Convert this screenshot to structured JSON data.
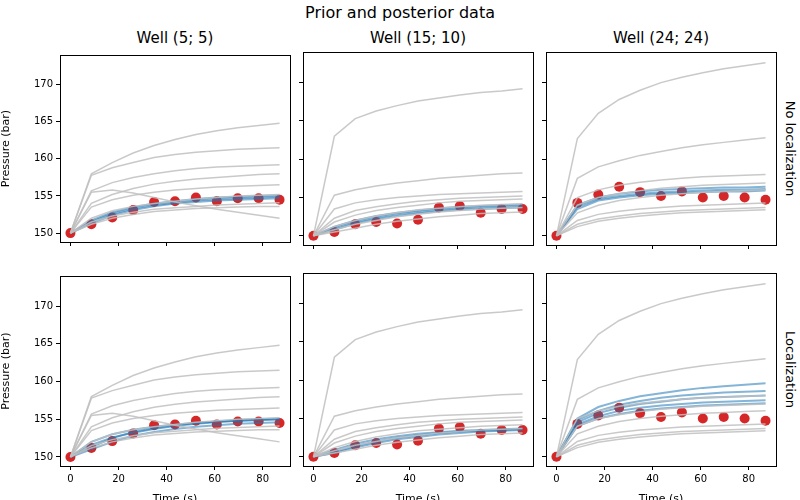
{
  "chart_data": {
    "type": "line",
    "title": "Prior and posterior data",
    "x_label": "Time (s)",
    "y_label": "Pressure (bar)",
    "x": [
      0,
      8.7,
      17.4,
      26.1,
      34.8,
      43.5,
      52.2,
      60.9,
      69.6,
      78.3,
      87
    ],
    "xlim": [
      -4.35,
      91.35
    ],
    "xticks": [
      0,
      20,
      40,
      60,
      80
    ],
    "ylim": [
      148.8,
      174
    ],
    "yticks": [
      150,
      155,
      160,
      165,
      170
    ],
    "grid": false,
    "legend": false,
    "wells": [
      {
        "title": "Well (5; 5)",
        "observed": {
          "color": "#d62728",
          "marker": "circle",
          "line_style": "none",
          "values": [
            150,
            151.2,
            152.1,
            153.1,
            154.2,
            154.3,
            154.8,
            154.3,
            154.7,
            154.7,
            154.5
          ]
        },
        "prior": {
          "color": "#bfbfbf",
          "line_style": "solid",
          "values": [
            [
              150,
              158,
              159.5,
              160.8,
              161.8,
              162.6,
              163.3,
              163.8,
              164.2,
              164.5,
              164.8
            ],
            [
              150,
              157.8,
              158.8,
              159.5,
              160.2,
              160.6,
              160.9,
              161.1,
              161.3,
              161.4,
              161.5
            ],
            [
              150,
              155.7,
              156.8,
              157.5,
              158.0,
              158.4,
              158.7,
              158.9,
              159.0,
              159.1,
              159.2
            ],
            [
              150,
              155.5,
              155.8,
              155.4,
              154.8,
              154.2,
              153.7,
              153.2,
              152.8,
              152.4,
              152.0
            ],
            [
              150,
              154.0,
              155.2,
              156.0,
              156.6,
              157.0,
              157.3,
              157.5,
              157.7,
              157.9,
              158.0
            ],
            [
              150,
              153.5,
              154.5,
              155.1,
              155.5,
              155.8,
              156.0,
              156.2,
              156.3,
              156.4,
              156.5
            ],
            [
              150,
              152.0,
              153.0,
              153.6,
              154.0,
              154.3,
              154.6,
              154.8,
              155.0,
              155.1,
              155.2
            ],
            [
              150,
              151.5,
              152.3,
              152.8,
              153.2,
              153.4,
              153.6,
              153.8,
              153.9,
              154.0,
              154.1
            ],
            [
              150,
              151.2,
              152.0,
              152.5,
              152.9,
              153.1,
              153.3,
              153.4,
              153.5,
              153.6,
              153.6
            ]
          ]
        }
      },
      {
        "title": "Well (15; 10)",
        "observed": {
          "color": "#d62728",
          "marker": "circle",
          "line_style": "none",
          "values": [
            150,
            150.5,
            151.5,
            151.8,
            151.6,
            152.1,
            153.7,
            153.9,
            153.0,
            153.5,
            153.5
          ]
        },
        "prior": {
          "color": "#bfbfbf",
          "line_style": "solid",
          "values": [
            [
              150,
              163,
              165.3,
              166.3,
              167.0,
              167.6,
              168.0,
              168.4,
              168.7,
              168.9,
              169.2
            ],
            [
              150,
              155.3,
              156.0,
              156.5,
              156.9,
              157.2,
              157.5,
              157.7,
              157.9,
              158.1,
              158.2
            ],
            [
              150,
              153.5,
              154.3,
              154.7,
              155.0,
              155.2,
              155.4,
              155.5,
              155.6,
              155.7,
              155.8
            ],
            [
              150,
              152.3,
              153.3,
              153.8,
              154.2,
              154.5,
              154.7,
              154.9,
              155.0,
              155.1,
              155.2
            ],
            [
              150,
              151.8,
              152.7,
              153.3,
              153.7,
              154.0,
              154.3,
              154.5,
              154.6,
              154.7,
              154.8
            ],
            [
              150,
              151.2,
              152.0,
              152.6,
              153.0,
              153.4,
              153.6,
              153.8,
              154.0,
              154.1,
              154.2
            ],
            [
              150,
              150.8,
              151.5,
              152.0,
              152.5,
              152.8,
              153.1,
              153.3,
              153.5,
              153.6,
              153.7
            ],
            [
              150,
              150.5,
              151.0,
              151.5,
              151.9,
              152.2,
              152.5,
              152.7,
              152.9,
              153.0,
              153.1
            ]
          ]
        }
      },
      {
        "title": "Well (24; 24)",
        "observed": {
          "color": "#d62728",
          "marker": "circle",
          "line_style": "none",
          "values": [
            150,
            154.3,
            155.4,
            156.4,
            155.7,
            155.2,
            155.8,
            155.0,
            155.2,
            155.0,
            154.7
          ]
        },
        "prior": {
          "color": "#bfbfbf",
          "line_style": "solid",
          "values": [
            [
              150,
              162.7,
              166.0,
              167.8,
              169.0,
              170.0,
              170.7,
              171.3,
              171.8,
              172.2,
              172.6
            ],
            [
              150,
              157.5,
              159.0,
              159.8,
              160.5,
              161.0,
              161.5,
              161.9,
              162.2,
              162.5,
              162.8
            ],
            [
              150,
              155.0,
              156.0,
              156.6,
              157.0,
              157.3,
              157.5,
              157.7,
              157.8,
              157.9,
              158.0
            ],
            [
              150,
              154.0,
              155.0,
              155.5,
              155.9,
              156.2,
              156.4,
              156.6,
              156.7,
              156.8,
              156.9
            ],
            [
              150,
              153.0,
              154.0,
              154.6,
              155.0,
              155.3,
              155.5,
              155.7,
              155.8,
              155.9,
              156.0
            ],
            [
              150,
              152.0,
              152.8,
              153.2,
              153.5,
              153.7,
              153.9,
              154.0,
              154.1,
              154.2,
              154.3
            ],
            [
              150,
              151.5,
              152.2,
              152.6,
              152.9,
              153.1,
              153.3,
              153.4,
              153.5,
              153.6,
              153.7
            ],
            [
              150,
              151.2,
              151.9,
              152.3,
              152.6,
              152.8,
              153.0,
              153.1,
              153.2,
              153.3,
              153.4
            ]
          ]
        }
      }
    ],
    "rows": [
      {
        "label": "No localization",
        "posterior": {
          "color": "#1f77b4",
          "line_style": "solid",
          "values": [
            [
              [
                150,
                151.5,
                152.6,
                153.3,
                153.8,
                154.1,
                154.4,
                154.6,
                154.7,
                154.8,
                154.9
              ],
              [
                150,
                151.3,
                152.4,
                153.1,
                153.6,
                154.0,
                154.2,
                154.4,
                154.5,
                154.6,
                154.7
              ],
              [
                150,
                151.7,
                152.8,
                153.5,
                154.0,
                154.3,
                154.6,
                154.8,
                154.9,
                155.0,
                155.1
              ]
            ],
            [
              [
                150,
                151.0,
                151.8,
                152.4,
                152.8,
                153.1,
                153.4,
                153.6,
                153.7,
                153.8,
                153.9
              ],
              [
                150,
                150.8,
                151.6,
                152.2,
                152.6,
                152.9,
                153.2,
                153.4,
                153.5,
                153.6,
                153.7
              ],
              [
                150,
                151.2,
                152.0,
                152.6,
                153.0,
                153.3,
                153.6,
                153.8,
                153.9,
                154.0,
                154.1
              ]
            ],
            [
              [
                150,
                153.8,
                154.8,
                155.2,
                155.5,
                155.7,
                155.8,
                155.9,
                156.0,
                156.0,
                156.1
              ],
              [
                150,
                153.5,
                154.6,
                155.0,
                155.3,
                155.5,
                155.6,
                155.7,
                155.8,
                155.8,
                155.9
              ],
              [
                150,
                154.0,
                155.0,
                155.5,
                155.8,
                156.0,
                156.1,
                156.2,
                156.3,
                156.3,
                156.4
              ]
            ]
          ]
        }
      },
      {
        "label": "Localization",
        "posterior": {
          "color": "#1f77b4",
          "line_style": "solid",
          "values": [
            [
              [
                150,
                151.3,
                152.5,
                153.3,
                153.8,
                154.2,
                154.5,
                154.7,
                154.9,
                155.0,
                155.1
              ],
              [
                150,
                152.0,
                153.0,
                153.6,
                154.0,
                154.3,
                154.5,
                154.7,
                154.8,
                154.9,
                155.0
              ],
              [
                150,
                151.0,
                152.0,
                152.8,
                153.3,
                153.7,
                154.0,
                154.2,
                154.4,
                154.5,
                154.6
              ],
              [
                150,
                151.6,
                152.6,
                153.2,
                153.7,
                154.1,
                154.4,
                154.6,
                154.8,
                154.9,
                155.0
              ]
            ],
            [
              [
                150,
                150.6,
                151.4,
                152.0,
                152.5,
                152.8,
                153.1,
                153.3,
                153.4,
                153.5,
                153.6
              ],
              [
                150,
                150.9,
                151.7,
                152.3,
                152.7,
                153.0,
                153.2,
                153.4,
                153.5,
                153.6,
                153.7
              ],
              [
                150,
                150.5,
                151.2,
                151.8,
                152.3,
                152.6,
                152.9,
                153.1,
                153.3,
                153.4,
                153.5
              ]
            ],
            [
              [
                150,
                155.0,
                156.5,
                157.3,
                157.9,
                158.3,
                158.7,
                159.0,
                159.2,
                159.4,
                159.6
              ],
              [
                150,
                154.8,
                156.0,
                156.8,
                157.3,
                157.7,
                158.0,
                158.2,
                158.4,
                158.5,
                158.6
              ],
              [
                150,
                154.5,
                155.7,
                156.4,
                156.9,
                157.2,
                157.5,
                157.7,
                157.8,
                157.9,
                158.0
              ],
              [
                150,
                154.2,
                155.3,
                156.0,
                156.4,
                156.7,
                156.9,
                157.1,
                157.2,
                157.3,
                157.4
              ],
              [
                150,
                154.0,
                155.0,
                155.6,
                156.0,
                156.3,
                156.5,
                156.7,
                156.8,
                156.9,
                157.0
              ]
            ]
          ]
        }
      }
    ]
  }
}
